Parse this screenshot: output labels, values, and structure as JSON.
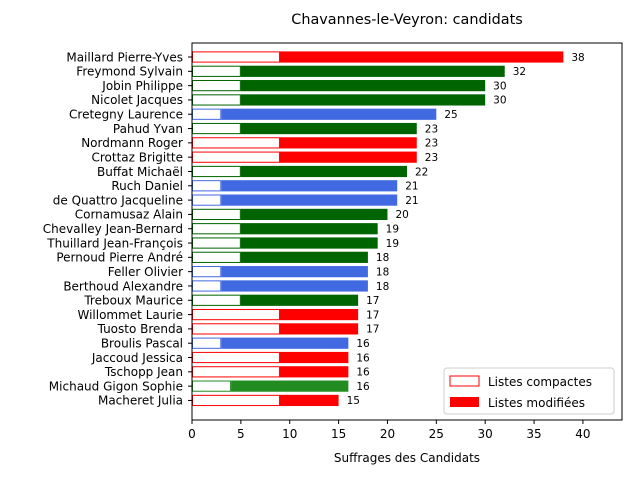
{
  "chart_data": {
    "type": "bar",
    "orientation": "horizontal",
    "stacked": true,
    "title": "Chavannes-le-Veyron: candidats",
    "xlabel": "Suffrages des Candidats",
    "ylabel": "",
    "xlim": [
      0,
      44
    ],
    "xticks": [
      0,
      5,
      10,
      15,
      20,
      25,
      30,
      35,
      40
    ],
    "legend_position": "bottom-right",
    "series": [
      {
        "name": "Listes compactes",
        "style": "outline"
      },
      {
        "name": "Listes modifiées",
        "style": "filled",
        "legend_color": "#ff0000"
      }
    ],
    "candidates": [
      {
        "name": "Maillard Pierre-Yves",
        "compact": 9,
        "total": 38,
        "color": "#ff0000"
      },
      {
        "name": "Freymond Sylvain",
        "compact": 5,
        "total": 32,
        "color": "#006400"
      },
      {
        "name": "Jobin Philippe",
        "compact": 5,
        "total": 30,
        "color": "#006400"
      },
      {
        "name": "Nicolet Jacques",
        "compact": 5,
        "total": 30,
        "color": "#006400"
      },
      {
        "name": "Cretegny Laurence",
        "compact": 3,
        "total": 25,
        "color": "#4169e1"
      },
      {
        "name": "Pahud Yvan",
        "compact": 5,
        "total": 23,
        "color": "#006400"
      },
      {
        "name": "Nordmann Roger",
        "compact": 9,
        "total": 23,
        "color": "#ff0000"
      },
      {
        "name": "Crottaz Brigitte",
        "compact": 9,
        "total": 23,
        "color": "#ff0000"
      },
      {
        "name": "Buffat Michaël",
        "compact": 5,
        "total": 22,
        "color": "#006400"
      },
      {
        "name": "Ruch Daniel",
        "compact": 3,
        "total": 21,
        "color": "#4169e1"
      },
      {
        "name": "de Quattro Jacqueline",
        "compact": 3,
        "total": 21,
        "color": "#4169e1"
      },
      {
        "name": "Cornamusaz Alain",
        "compact": 5,
        "total": 20,
        "color": "#006400"
      },
      {
        "name": "Chevalley Jean-Bernard",
        "compact": 5,
        "total": 19,
        "color": "#006400"
      },
      {
        "name": "Thuillard Jean-François",
        "compact": 5,
        "total": 19,
        "color": "#006400"
      },
      {
        "name": "Pernoud Pierre André",
        "compact": 5,
        "total": 18,
        "color": "#006400"
      },
      {
        "name": "Feller Olivier",
        "compact": 3,
        "total": 18,
        "color": "#4169e1"
      },
      {
        "name": "Berthoud Alexandre",
        "compact": 3,
        "total": 18,
        "color": "#4169e1"
      },
      {
        "name": "Treboux Maurice",
        "compact": 5,
        "total": 17,
        "color": "#006400"
      },
      {
        "name": "Willommet Laurie",
        "compact": 9,
        "total": 17,
        "color": "#ff0000"
      },
      {
        "name": "Tuosto Brenda",
        "compact": 9,
        "total": 17,
        "color": "#ff0000"
      },
      {
        "name": "Broulis Pascal",
        "compact": 3,
        "total": 16,
        "color": "#4169e1"
      },
      {
        "name": "Jaccoud Jessica",
        "compact": 9,
        "total": 16,
        "color": "#ff0000"
      },
      {
        "name": "Tschopp Jean",
        "compact": 9,
        "total": 16,
        "color": "#ff0000"
      },
      {
        "name": "Michaud Gigon Sophie",
        "compact": 4,
        "total": 16,
        "color": "#228b22"
      },
      {
        "name": "Macheret Julia",
        "compact": 9,
        "total": 15,
        "color": "#ff0000"
      }
    ]
  }
}
